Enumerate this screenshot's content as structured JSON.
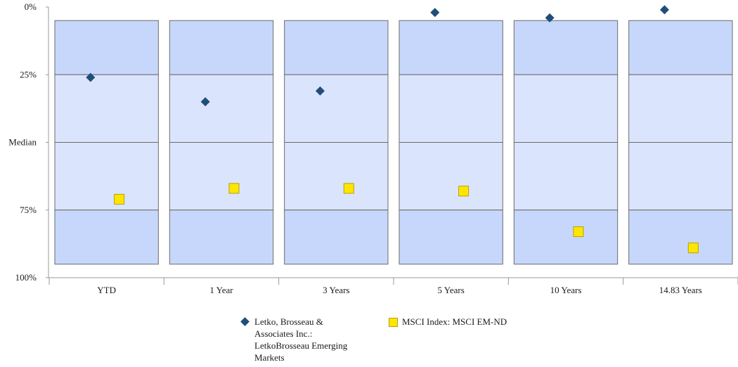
{
  "chart_data": {
    "type": "scatter",
    "subtype": "floating-percentile-boxes",
    "categories": [
      "YTD",
      "1 Year",
      "3 Years",
      "5 Years",
      "10 Years",
      "14.83 Years"
    ],
    "y_tick_labels": [
      "0%",
      "25%",
      "Median",
      "75%",
      "100%"
    ],
    "y_tick_values": [
      0,
      25,
      50,
      75,
      100
    ],
    "ylim": [
      0,
      100
    ],
    "y_inverted": true,
    "bands": {
      "top": [
        5,
        25
      ],
      "upper_middle": [
        25,
        50
      ],
      "lower_middle": [
        50,
        75
      ],
      "bottom": [
        75,
        95
      ]
    },
    "series": [
      {
        "name": "Letko, Brosseau & Associates Inc.: LetkoBrosseau Emerging Markets",
        "name_lines": [
          "Letko, Brosseau &",
          "Associates Inc.:",
          "LetkoBrosseau Emerging",
          "Markets"
        ],
        "marker": "diamond",
        "color": "#1f4e79",
        "values": [
          26,
          35,
          31,
          2,
          4,
          1
        ]
      },
      {
        "name": "MSCI Index: MSCI EM-ND",
        "marker": "square",
        "color": "#ffe600",
        "values": [
          71,
          67,
          67,
          68,
          83,
          89
        ]
      }
    ],
    "colors": {
      "outer_band": "#c6d7fb",
      "inner_band": "#dbe4fd",
      "band_border": "#6b6b6b"
    },
    "grid": false,
    "legend_position": "bottom"
  }
}
